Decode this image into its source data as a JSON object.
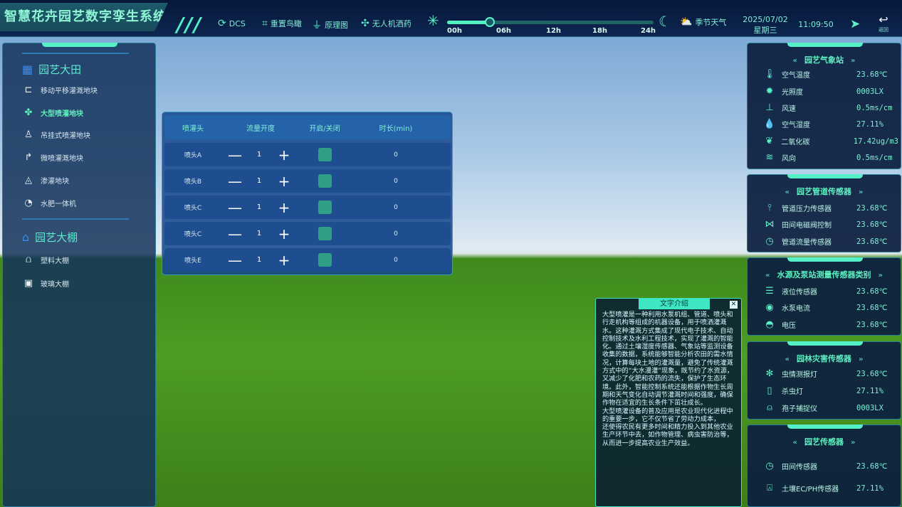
{
  "header": {
    "title": "智慧花卉园艺数字孪生系统",
    "nav": [
      {
        "icon": "dcs-icon",
        "label": "DCS"
      },
      {
        "icon": "reset-view-icon",
        "label": "重置鸟瞰"
      },
      {
        "icon": "diagram-icon",
        "label": "原理图"
      },
      {
        "icon": "drone-icon",
        "label": "无人机洒药"
      }
    ],
    "time_slider": {
      "ticks": [
        "00h",
        "06h",
        "12h",
        "18h",
        "24h"
      ],
      "value_hours": 5
    },
    "weather_label": "季节天气",
    "date": "2025/07/02",
    "weekday": "星期三",
    "time": "11:09:50",
    "back_label": "返回"
  },
  "sidebar": {
    "groups": [
      {
        "label": "园艺大田",
        "icon": "grid-icon",
        "items": [
          {
            "label": "移动平移灌溉地块",
            "icon": "sprinkler-move-icon"
          },
          {
            "label": "大型喷灌地块",
            "icon": "sprinkler-large-icon",
            "active": true
          },
          {
            "label": "吊挂式喷灌地块",
            "icon": "hanging-sprinkler-icon"
          },
          {
            "label": "微喷灌溉地块",
            "icon": "micro-spray-icon"
          },
          {
            "label": "渗灌地块",
            "icon": "seep-icon"
          },
          {
            "label": "水肥一体机",
            "icon": "fertilizer-machine-icon"
          }
        ]
      },
      {
        "label": "园艺大棚",
        "icon": "greenhouse-icon",
        "items": [
          {
            "label": "塑料大棚",
            "icon": "plastic-greenhouse-icon"
          },
          {
            "label": "玻璃大棚",
            "icon": "glass-greenhouse-icon"
          }
        ]
      }
    ]
  },
  "table": {
    "headers": [
      "喷灌头",
      "流量开度",
      "开启/关闭",
      "时长(min)"
    ],
    "rows": [
      {
        "name": "喷头A",
        "flow": "1",
        "on": true,
        "duration": "0"
      },
      {
        "name": "喷头B",
        "flow": "1",
        "on": true,
        "duration": "0"
      },
      {
        "name": "喷头C",
        "flow": "1",
        "on": true,
        "duration": "0"
      },
      {
        "name": "喷头C",
        "flow": "1",
        "on": true,
        "duration": "0"
      },
      {
        "name": "喷头E",
        "flow": "1",
        "on": true,
        "duration": "0"
      }
    ]
  },
  "intro": {
    "title": "文字介绍",
    "text": "大型喷灌是一种利用水泵机组、管道、喷头和行走机构等组成的机器设备，用于喷洒灌溉水。这种灌溉方式集成了现代电子技术、自动控制技术及水利工程技术，实现了灌溉的智能化。通过土壤湿度传感器、气象站等监测设备收集的数据，系统能够智能分析农田的需水情况，计算每块土地的灌溉量，避免了传统灌溉方式中的“大水漫灌”现象，既节约了水资源，又减少了化肥和农药的流失，保护了生态环境。此外，智能控制系统还能根据作物生长周期和天气变化自动调节灌溉时间和强度，确保作物在适宜的生长条件下茁壮成长。\n大型喷灌设备的普及应用是农业现代化进程中的重要一步，它不仅节省了劳动力成本，\n还使得农民有更多时间和精力投入到其他农业生产环节中去，如作物管理、病虫害防治等，从而进一步提高农业生产效益。"
  },
  "panels": [
    {
      "title": "园艺气象站",
      "rows": [
        {
          "icon": "thermometer-icon",
          "label": "空气温度",
          "value": "23.68℃"
        },
        {
          "icon": "sun-icon",
          "label": "光照度",
          "value": "0003LX"
        },
        {
          "icon": "wind-speed-icon",
          "label": "风速",
          "value": "0.5ms/cm"
        },
        {
          "icon": "humidity-icon",
          "label": "空气湿度",
          "value": "27.11%"
        },
        {
          "icon": "leaf-icon",
          "label": "二氧化碳",
          "value": "17.42ug/m3"
        },
        {
          "icon": "wind-direction-icon",
          "label": "风向",
          "value": "0.5ms/cm"
        }
      ]
    },
    {
      "title": "园艺管道传感器",
      "rows": [
        {
          "icon": "pressure-icon",
          "label": "管道压力传感器",
          "value": "23.68℃"
        },
        {
          "icon": "valve-icon",
          "label": "田间电磁阀控制",
          "value": "23.68℃"
        },
        {
          "icon": "gauge-icon",
          "label": "管道流量传感器",
          "value": "23.68℃"
        }
      ]
    },
    {
      "title": "水源及泵站测量传感器类别",
      "rows": [
        {
          "icon": "water-level-icon",
          "label": "液位传感器",
          "value": "23.68℃"
        },
        {
          "icon": "pump-icon",
          "label": "水泵电流",
          "value": "23.68℃"
        },
        {
          "icon": "voltmeter-icon",
          "label": "电压",
          "value": "23.68℃"
        }
      ]
    },
    {
      "title": "园林灾害传感器",
      "rows": [
        {
          "icon": "bug-icon",
          "label": "虫情测报灯",
          "value": "23.68℃"
        },
        {
          "icon": "lamp-icon",
          "label": "杀虫灯",
          "value": "27.11%"
        },
        {
          "icon": "trap-icon",
          "label": "孢子捕捉仪",
          "value": "0003LX"
        }
      ]
    },
    {
      "title": "园艺传感器",
      "rows": [
        {
          "icon": "gauge-icon",
          "label": "田间传感器",
          "value": "23.68℃"
        },
        {
          "icon": "soil-sensor-icon",
          "label": "土壤EC/PH传感器",
          "value": "27.11%"
        }
      ]
    }
  ],
  "colors": {
    "accent": "#55f0c8",
    "panel": "#0c1e3e",
    "active": "#59f2b8"
  }
}
